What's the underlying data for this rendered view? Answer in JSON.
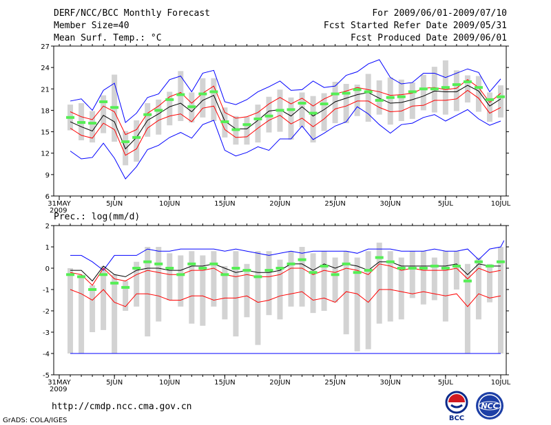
{
  "header": {
    "title": "DERF/NCC/BCC Monthly Forecast",
    "member_size": "Member Size=40",
    "variable": "Mean Surf. Temp.: °C",
    "forecast_period": "For 2009/06/01-2009/07/10",
    "started_refer": "Fcst Started Refer Date 2009/05/31",
    "produced": "Fcst Produced Date 2009/06/01"
  },
  "footer": {
    "url": "http://cmdp.ncc.cma.gov.cn",
    "credit": "GrADS: COLA/IGES",
    "logo_bcc_label": "BCC",
    "logo_ncc_label": "NCC"
  },
  "colors": {
    "ensemble_mean": "#000000",
    "range_bounds": "#0000ff",
    "spread_bounds": "#ff0000",
    "observation": "#55ee55",
    "box": "#d3d3d3"
  },
  "chart_data": [
    {
      "type": "box-line",
      "title": "Mean Surf. Temp.: °C",
      "x_days": 41,
      "x_ticks": [
        {
          "day": 0,
          "label": "31MAY",
          "label2": "2009"
        },
        {
          "day": 5,
          "label": "5JUN"
        },
        {
          "day": 10,
          "label": "10JUN"
        },
        {
          "day": 15,
          "label": "15JUN"
        },
        {
          "day": 20,
          "label": "20JUN"
        },
        {
          "day": 25,
          "label": "25JUN"
        },
        {
          "day": 30,
          "label": "30JUN"
        },
        {
          "day": 35,
          "label": "5JUL"
        },
        {
          "day": 40,
          "label": "10JUL"
        }
      ],
      "ylim": [
        6,
        27
      ],
      "yticks": [
        6,
        9,
        12,
        15,
        18,
        21,
        24,
        27
      ],
      "series": [
        {
          "name": "max",
          "color": "#0000ff",
          "values": [
            19.3,
            19.6,
            18,
            20.8,
            21.8,
            16.3,
            17.6,
            19.8,
            20.3,
            22.3,
            22.8,
            20.6,
            23.2,
            23.6,
            19.2,
            18.8,
            19.5,
            20.6,
            21.3,
            22.1,
            20.8,
            20.9,
            22.1,
            21.2,
            21.4,
            22.9,
            23.4,
            24.5,
            25.1,
            22.6,
            21.7,
            21.9,
            23.2,
            23.2,
            22.6,
            23.2,
            23.8,
            23.3,
            20.6,
            22.4
          ]
        },
        {
          "name": "upper",
          "color": "#ff0000",
          "values": [
            17.8,
            17.1,
            16.7,
            18.6,
            17.8,
            14.6,
            15.3,
            17.6,
            18.6,
            19.9,
            20.5,
            19,
            20.4,
            21.4,
            17.7,
            16.9,
            17.1,
            17.7,
            18.9,
            19.8,
            18.9,
            19.7,
            18.6,
            19.6,
            20.3,
            20.7,
            21.2,
            20.9,
            20.6,
            20.1,
            20.2,
            20.4,
            21.1,
            21.2,
            20.9,
            21.1,
            22.3,
            21.2,
            19.1,
            20.4
          ]
        },
        {
          "name": "mean",
          "color": "#000000",
          "values": [
            16.4,
            15.7,
            15.1,
            17.3,
            16.4,
            12.6,
            14.2,
            16.6,
            17.5,
            18.5,
            19,
            17.8,
            19.4,
            20.1,
            16.5,
            15.4,
            15.4,
            16.6,
            17.9,
            18.1,
            17.2,
            18.5,
            17.2,
            18.1,
            19.2,
            19.7,
            20.2,
            20.5,
            19.7,
            19,
            19.1,
            19.5,
            20,
            20.7,
            20.6,
            20.6,
            21.5,
            20.7,
            18.6,
            19.6
          ]
        },
        {
          "name": "lower",
          "color": "#ff0000",
          "values": [
            15.5,
            14.5,
            14.1,
            16.2,
            15.3,
            11.7,
            12.6,
            15.5,
            16.6,
            17.2,
            17.5,
            16.4,
            18.3,
            18.6,
            15.3,
            14.2,
            14.3,
            15.5,
            16.6,
            17.3,
            16.1,
            16.9,
            15.7,
            16.8,
            18.2,
            18.6,
            19.3,
            19.3,
            18.4,
            17.8,
            17.9,
            18.6,
            18.7,
            19.4,
            19.4,
            19.6,
            20.8,
            19.7,
            17.6,
            18.4
          ]
        },
        {
          "name": "min",
          "color": "#0000ff",
          "values": [
            12.3,
            11.2,
            11.4,
            13.4,
            11.3,
            8.4,
            10.1,
            12.5,
            13.1,
            14.2,
            14.9,
            14.1,
            16,
            16.6,
            12.4,
            11.6,
            12.1,
            12.9,
            12.4,
            14,
            14,
            15.8,
            13.9,
            14.8,
            15.8,
            16.4,
            18.5,
            17.5,
            16,
            14.8,
            16,
            16.2,
            17,
            17.4,
            16.5,
            17.3,
            18.1,
            16.8,
            15.9,
            16.5
          ]
        },
        {
          "name": "observed",
          "color": "#55ee55",
          "values": [
            17,
            16.3,
            16.2,
            19.2,
            18.4,
            13.6,
            14.2,
            17.4,
            18,
            19.5,
            20.2,
            18.5,
            20.3,
            20.6,
            16.4,
            15.3,
            16,
            16.8,
            17.2,
            18,
            18.1,
            19,
            17.6,
            18.9,
            20.3,
            20.4,
            20.9,
            20.6,
            19.4,
            19.8,
            19.9,
            20.6,
            21,
            21,
            21.2,
            21.6,
            22,
            21.2,
            19.5,
            19.9
          ]
        }
      ],
      "boxes": [
        [
          15.2,
          18.8
        ],
        [
          13.8,
          19
        ],
        [
          13.5,
          17.9
        ],
        [
          14.8,
          20.1
        ],
        [
          13.6,
          23
        ],
        [
          10.3,
          15.1
        ],
        [
          10.8,
          16.6
        ],
        [
          14.3,
          19
        ],
        [
          14.6,
          19.5
        ],
        [
          15.9,
          20.6
        ],
        [
          16.5,
          23.5
        ],
        [
          16.3,
          20.5
        ],
        [
          17,
          22.5
        ],
        [
          16.5,
          22.5
        ],
        [
          14.2,
          18.4
        ],
        [
          13.2,
          17.2
        ],
        [
          13.2,
          17.1
        ],
        [
          13.5,
          18.8
        ],
        [
          14.9,
          19.9
        ],
        [
          15,
          20.9
        ],
        [
          13.9,
          19.8
        ],
        [
          15.6,
          20.5
        ],
        [
          13.5,
          20
        ],
        [
          15.1,
          20.4
        ],
        [
          16.2,
          22
        ],
        [
          16.2,
          21.7
        ],
        [
          17.2,
          21.6
        ],
        [
          16.4,
          23.1
        ],
        [
          17.4,
          22.2
        ],
        [
          16,
          22.6
        ],
        [
          16.5,
          22.3
        ],
        [
          16.8,
          21.9
        ],
        [
          18,
          23
        ],
        [
          17.7,
          24.1
        ],
        [
          17.4,
          25
        ],
        [
          17.9,
          23.6
        ],
        [
          19.1,
          22.9
        ],
        [
          17.8,
          22.8
        ],
        [
          16.4,
          20.5
        ],
        [
          17,
          21.5
        ]
      ]
    },
    {
      "type": "box-line",
      "title": "Prec.: log(mm/d)",
      "x_days": 41,
      "x_ticks": [
        {
          "day": 0,
          "label": "31MAY",
          "label2": "2009"
        },
        {
          "day": 5,
          "label": "5JUN"
        },
        {
          "day": 10,
          "label": "10JUN"
        },
        {
          "day": 15,
          "label": "15JUN"
        },
        {
          "day": 20,
          "label": "20JUN"
        },
        {
          "day": 25,
          "label": "25JUN"
        },
        {
          "day": 30,
          "label": "30JUN"
        },
        {
          "day": 35,
          "label": "5JUL"
        },
        {
          "day": 40,
          "label": "10JUL"
        }
      ],
      "ylim": [
        -5,
        2
      ],
      "yticks": [
        -5,
        -4,
        -3,
        -2,
        -1,
        0,
        1,
        2
      ],
      "series": [
        {
          "name": "max",
          "color": "#0000ff",
          "values": [
            0.6,
            0.6,
            0.3,
            -0.1,
            0.6,
            0.6,
            0.6,
            0.9,
            0.8,
            0.8,
            0.9,
            0.9,
            0.9,
            0.9,
            0.8,
            0.9,
            0.8,
            0.7,
            0.6,
            0.7,
            0.8,
            0.7,
            0.8,
            0.8,
            0.8,
            0.8,
            0.7,
            0.9,
            0.9,
            0.9,
            0.8,
            0.8,
            0.8,
            0.9,
            0.8,
            0.8,
            0.9,
            0.4,
            0.9,
            1
          ],
          "extra_end": 1.3
        },
        {
          "name": "upper",
          "color": "#000000",
          "values": [
            -0.1,
            -0.1,
            -0.6,
            0.1,
            -0.3,
            -0.4,
            -0.1,
            0,
            0,
            -0.1,
            -0.1,
            0.1,
            0.1,
            0.2,
            0,
            -0.2,
            -0.1,
            -0.2,
            -0.2,
            -0.1,
            0.2,
            0.2,
            -0.1,
            0.2,
            0,
            0.2,
            0.1,
            -0.1,
            0.3,
            0.3,
            0.1,
            0.1,
            0.1,
            0.1,
            0.1,
            0.2,
            -0.3,
            0.2,
            0.1,
            0.1
          ]
        },
        {
          "name": "lower",
          "color": "#ff0000",
          "values": [
            -0.2,
            -0.3,
            -0.8,
            0,
            -0.5,
            -0.6,
            -0.3,
            -0.1,
            -0.2,
            -0.3,
            -0.3,
            -0.1,
            -0.1,
            0,
            -0.3,
            -0.4,
            -0.3,
            -0.4,
            -0.4,
            -0.3,
            0,
            0,
            -0.3,
            -0.1,
            -0.2,
            0,
            -0.1,
            -0.3,
            0.2,
            0.1,
            -0.1,
            0,
            -0.1,
            -0.1,
            -0.1,
            0,
            -0.5,
            0,
            -0.2,
            -0.1
          ]
        },
        {
          "name": "min",
          "color": "#ff0000",
          "values": [
            -1,
            -1.2,
            -1.5,
            -1,
            -1.6,
            -1.8,
            -1.2,
            -1.2,
            -1.3,
            -1.5,
            -1.5,
            -1.3,
            -1.3,
            -1.5,
            -1.4,
            -1.4,
            -1.3,
            -1.6,
            -1.5,
            -1.3,
            -1.2,
            -1.1,
            -1.5,
            -1.4,
            -1.6,
            -1.1,
            -1.2,
            -1.6,
            -1,
            -1,
            -1.1,
            -1.2,
            -1.1,
            -1.2,
            -1.3,
            -1.2,
            -1.8,
            -1.2,
            -1.4,
            -1.3
          ]
        },
        {
          "name": "observed",
          "color": "#55ee55",
          "values": [
            -0.3,
            -0.4,
            -1,
            -0.3,
            -0.7,
            -0.9,
            0,
            0.3,
            0.2,
            0,
            -0.3,
            0.2,
            0,
            0.2,
            -0.3,
            0,
            -0.1,
            -0.4,
            -0.1,
            0,
            0.2,
            0.4,
            -0.2,
            0.1,
            -0.3,
            0.2,
            -0.2,
            -0.1,
            0.5,
            0.3,
            0,
            0,
            0,
            0.1,
            0,
            0.1,
            -0.6,
            0.3,
            0.1,
            0.3
          ]
        }
      ],
      "boxes": [
        [
          -4,
          0
        ],
        [
          -4,
          -0.3
        ],
        [
          -3,
          -0.8
        ],
        [
          -2.9,
          0.1
        ],
        [
          -4,
          -0.3
        ],
        [
          -2,
          -0.6
        ],
        [
          -1.8,
          0.3
        ],
        [
          -3.2,
          1
        ],
        [
          -2.5,
          1
        ],
        [
          -1.5,
          0.7
        ],
        [
          -1.8,
          0.6
        ],
        [
          -2.6,
          0.8
        ],
        [
          -2.7,
          0.6
        ],
        [
          -1.8,
          0.8
        ],
        [
          -2.4,
          0.1
        ],
        [
          -3.2,
          0.8
        ],
        [
          -2.3,
          0.2
        ],
        [
          -3.6,
          0.8
        ],
        [
          -2.2,
          0.8
        ],
        [
          -2.4,
          0.4
        ],
        [
          -1.8,
          0.8
        ],
        [
          -1.8,
          1
        ],
        [
          -2.1,
          0.7
        ],
        [
          -2,
          0.8
        ],
        [
          -1.6,
          0.5
        ],
        [
          -3.1,
          0.8
        ],
        [
          -3.9,
          0.5
        ],
        [
          -3.8,
          0.8
        ],
        [
          -2.6,
          1.2
        ],
        [
          -2.5,
          0.8
        ],
        [
          -2.4,
          0.5
        ],
        [
          -1.4,
          0.8
        ],
        [
          -1.7,
          0.8
        ],
        [
          -1.5,
          0.5
        ],
        [
          -2.5,
          0.8
        ],
        [
          -1,
          0.8
        ],
        [
          -4,
          0.2
        ],
        [
          -2.4,
          0.5
        ],
        [
          -1.6,
          0.2
        ],
        [
          -4,
          1
        ]
      ],
      "floor_line": -4
    }
  ]
}
